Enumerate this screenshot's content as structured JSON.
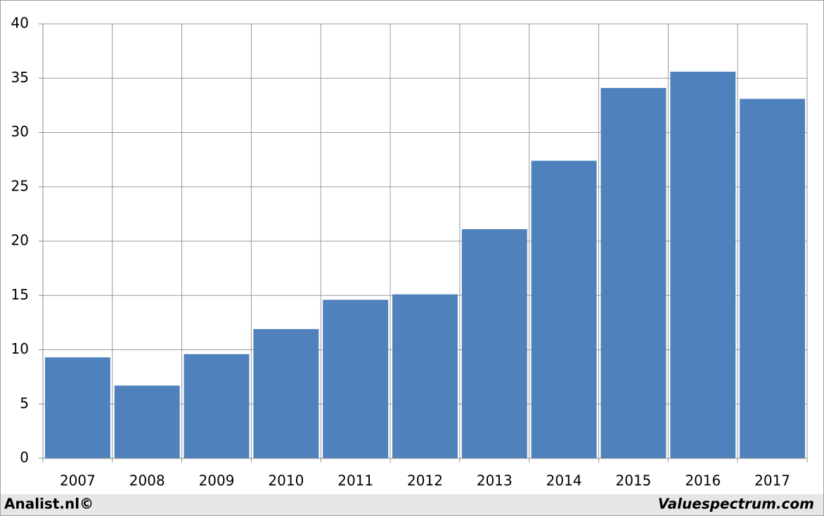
{
  "chart_data": {
    "type": "bar",
    "categories": [
      "2007",
      "2008",
      "2009",
      "2010",
      "2011",
      "2012",
      "2013",
      "2014",
      "2015",
      "2016",
      "2017"
    ],
    "values": [
      9.3,
      6.7,
      9.6,
      11.9,
      14.6,
      15.1,
      21.1,
      27.4,
      34.1,
      35.6,
      33.1
    ],
    "color": "#4f81bd",
    "ylim": [
      0,
      40
    ],
    "yticks": [
      0,
      5,
      10,
      15,
      20,
      25,
      30,
      35,
      40
    ],
    "grid": true
  },
  "footer": {
    "left": "Analist.nl©",
    "right": "Valuespectrum.com"
  }
}
